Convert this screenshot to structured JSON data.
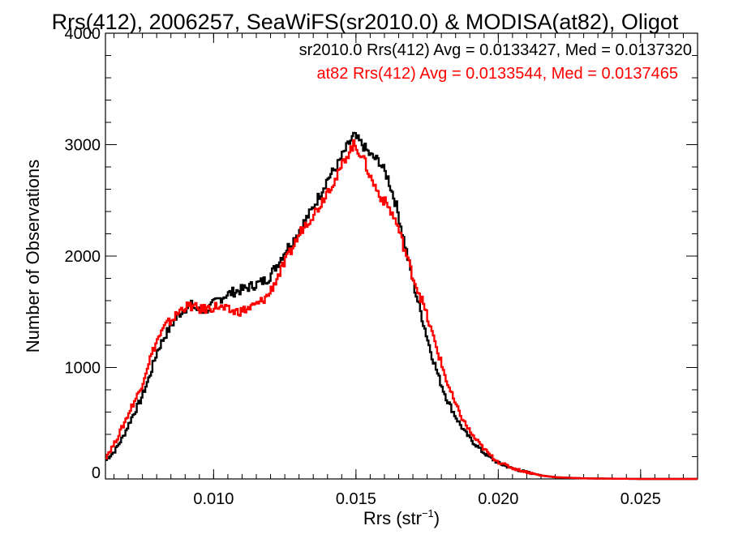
{
  "chart_data": {
    "type": "line",
    "title": "Rrs(412), 2006257, SeaWiFS(sr2010.0) & MODISA(at82), Oligot",
    "xlabel": "Rrs (str",
    "xlabel_sup": "−1",
    "xlabel_close": ")",
    "ylabel": "Number of Observations",
    "xlim": [
      0.0062,
      0.027
    ],
    "ylim": [
      0,
      4000
    ],
    "x_ticks": [
      0.01,
      0.015,
      0.02,
      0.025
    ],
    "x_tick_labels": [
      "0.010",
      "0.015",
      "0.020",
      "0.025"
    ],
    "y_ticks": [
      0,
      1000,
      2000,
      3000,
      4000
    ],
    "y_tick_labels": [
      "0",
      "1000",
      "2000",
      "3000",
      "4000"
    ],
    "annotations": [
      {
        "text": "sr2010.0 Rrs(412) Avg = 0.0133427, Med = 0.0137320",
        "color": "#000000"
      },
      {
        "text": "at82 Rrs(412) Avg = 0.0133544, Med = 0.0137465",
        "color": "#ff0000"
      }
    ],
    "series": [
      {
        "color": "#000000",
        "x": [
          0.0062,
          0.0065,
          0.0068,
          0.0071,
          0.0074,
          0.0077,
          0.008,
          0.0083,
          0.0086,
          0.0089,
          0.0092,
          0.0095,
          0.0098,
          0.0101,
          0.0104,
          0.0107,
          0.011,
          0.0113,
          0.0116,
          0.0119,
          0.0122,
          0.0125,
          0.0128,
          0.0131,
          0.0134,
          0.0137,
          0.014,
          0.0143,
          0.0146,
          0.0149,
          0.0152,
          0.0155,
          0.0158,
          0.0161,
          0.0164,
          0.0167,
          0.017,
          0.0173,
          0.0176,
          0.0179,
          0.0182,
          0.0185,
          0.0188,
          0.0191,
          0.0194,
          0.0197,
          0.02,
          0.0205,
          0.021,
          0.0215,
          0.022,
          0.023,
          0.025,
          0.027
        ],
        "y": [
          170,
          250,
          380,
          550,
          700,
          900,
          1150,
          1300,
          1420,
          1520,
          1560,
          1500,
          1530,
          1600,
          1650,
          1680,
          1700,
          1730,
          1760,
          1800,
          1920,
          2050,
          2150,
          2280,
          2400,
          2550,
          2700,
          2800,
          2950,
          3080,
          3000,
          2900,
          2850,
          2700,
          2450,
          2100,
          1750,
          1450,
          1150,
          900,
          700,
          550,
          420,
          330,
          250,
          190,
          140,
          90,
          60,
          30,
          15,
          5,
          0,
          0
        ]
      },
      {
        "color": "#ff0000",
        "x": [
          0.0062,
          0.0065,
          0.0068,
          0.0071,
          0.0074,
          0.0077,
          0.008,
          0.0083,
          0.0086,
          0.0089,
          0.0092,
          0.0095,
          0.0098,
          0.0101,
          0.0104,
          0.0107,
          0.011,
          0.0113,
          0.0116,
          0.0119,
          0.0122,
          0.0125,
          0.0128,
          0.0131,
          0.0134,
          0.0137,
          0.014,
          0.0143,
          0.0146,
          0.0149,
          0.0152,
          0.0155,
          0.0158,
          0.0161,
          0.0164,
          0.0167,
          0.017,
          0.0173,
          0.0176,
          0.0179,
          0.0182,
          0.0185,
          0.0188,
          0.0191,
          0.0194,
          0.0197,
          0.02,
          0.0205,
          0.021,
          0.0215,
          0.022,
          0.023,
          0.025,
          0.027
        ],
        "y": [
          200,
          320,
          480,
          650,
          800,
          1050,
          1250,
          1380,
          1450,
          1540,
          1550,
          1520,
          1530,
          1550,
          1520,
          1500,
          1510,
          1540,
          1580,
          1650,
          1800,
          1950,
          2100,
          2250,
          2350,
          2450,
          2600,
          2700,
          2880,
          3000,
          2900,
          2700,
          2550,
          2450,
          2300,
          2050,
          1800,
          1600,
          1350,
          1100,
          850,
          650,
          500,
          380,
          290,
          210,
          150,
          95,
          60,
          30,
          15,
          5,
          0,
          0
        ]
      }
    ]
  }
}
